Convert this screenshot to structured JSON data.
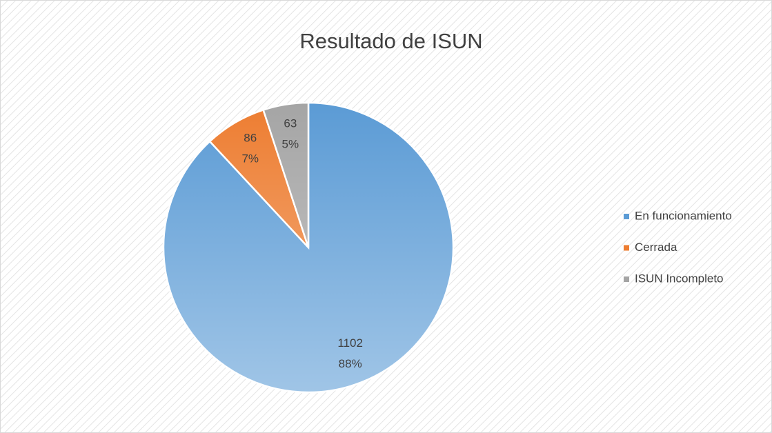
{
  "chart_data": {
    "type": "pie",
    "title": "Resultado de ISUN",
    "categories": [
      "En funcionamiento",
      "Cerrada",
      "ISUN Incompleto"
    ],
    "values": [
      1102,
      86,
      63
    ],
    "percent_labels": [
      "88%",
      "7%",
      "5%"
    ],
    "colors": [
      "#5b9bd5",
      "#ed7d31",
      "#a5a5a5"
    ],
    "legend": "right"
  }
}
